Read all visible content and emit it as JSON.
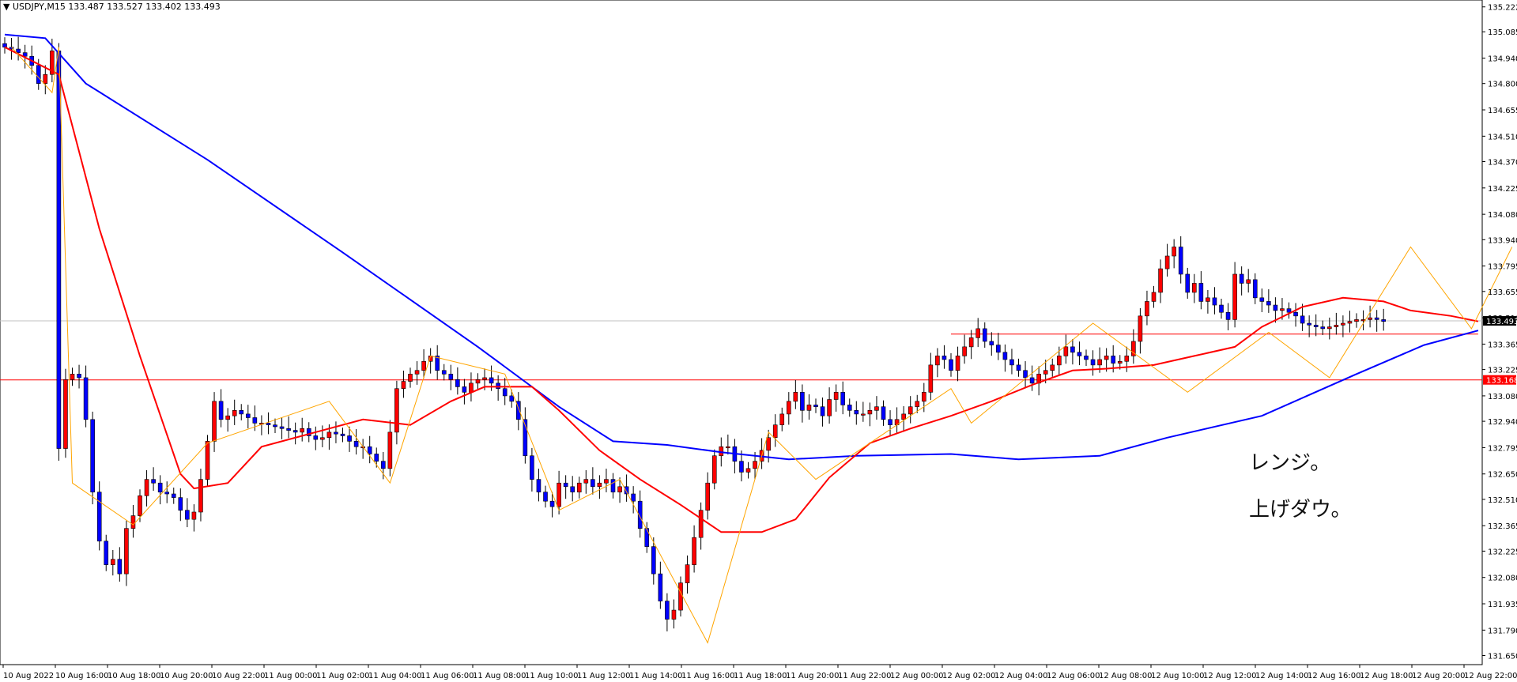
{
  "header": {
    "symbol": "USDJPY,M15",
    "ohlc": "133.487 133.527 133.402 133.493"
  },
  "memo": {
    "line1": "レンジ。",
    "line2": "上げダウ。"
  },
  "colors": {
    "bull_body": "#ff0000",
    "bear_body": "#0000ff",
    "wick": "#000000",
    "ma_fast": "#ff0000",
    "ma_slow": "#0000ff",
    "zigzag": "#ffa500",
    "hline": "#ff0000",
    "bid_line": "#c0c0c0",
    "price_tag_bg": "#000000",
    "level_tag_bg": "#ff0000"
  },
  "chart_data": {
    "type": "candlestick",
    "timeframe": "M15",
    "y_ticks": [
      "135.222",
      "135.085",
      "134.940",
      "134.800",
      "134.655",
      "134.510",
      "134.370",
      "134.225",
      "134.080",
      "133.940",
      "133.795",
      "133.655",
      "133.510",
      "133.365",
      "133.225",
      "133.080",
      "132.940",
      "132.795",
      "132.650",
      "132.510",
      "132.365",
      "132.225",
      "132.080",
      "131.935",
      "131.790",
      "131.650"
    ],
    "ylim": [
      131.6,
      135.26
    ],
    "x_ticks": [
      "10 Aug 2022",
      "10 Aug 16:00",
      "10 Aug 18:00",
      "10 Aug 20:00",
      "10 Aug 22:00",
      "11 Aug 00:00",
      "11 Aug 02:00",
      "11 Aug 04:00",
      "11 Aug 06:00",
      "11 Aug 08:00",
      "11 Aug 10:00",
      "11 Aug 12:00",
      "11 Aug 14:00",
      "11 Aug 16:00",
      "11 Aug 18:00",
      "11 Aug 20:00",
      "11 Aug 22:00",
      "12 Aug 00:00",
      "12 Aug 02:00",
      "12 Aug 04:00",
      "12 Aug 06:00",
      "12 Aug 08:00",
      "12 Aug 10:00",
      "12 Aug 12:00",
      "12 Aug 14:00",
      "12 Aug 16:00",
      "12 Aug 18:00",
      "12 Aug 20:00",
      "12 Aug 22:00"
    ],
    "current_price": "133.493",
    "level_price": "133.168",
    "range_top": 133.42,
    "close_series": [
      135.0,
      134.99,
      134.97,
      134.95,
      134.9,
      134.8,
      134.85,
      134.98,
      132.79,
      133.17,
      133.2,
      133.18,
      132.95,
      132.55,
      132.28,
      132.15,
      132.18,
      132.1,
      132.35,
      132.42,
      132.53,
      132.62,
      132.6,
      132.55,
      132.54,
      132.52,
      132.45,
      132.4,
      132.44,
      132.62,
      132.83,
      133.05,
      132.95,
      132.97,
      133.0,
      132.98,
      132.96,
      132.93,
      132.93,
      132.92,
      132.91,
      132.9,
      132.89,
      132.88,
      132.9,
      132.86,
      132.84,
      132.85,
      132.88,
      132.87,
      132.86,
      132.83,
      132.8,
      132.8,
      132.76,
      132.72,
      132.68,
      132.88,
      133.12,
      133.16,
      133.2,
      133.22,
      133.27,
      133.3,
      133.22,
      133.2,
      133.17,
      133.13,
      133.1,
      133.15,
      133.17,
      133.18,
      133.15,
      133.12,
      133.08,
      133.05,
      132.95,
      132.75,
      132.62,
      132.55,
      132.5,
      132.47,
      132.6,
      132.58,
      132.55,
      132.6,
      132.62,
      132.58,
      132.6,
      132.62,
      132.55,
      132.58,
      132.54,
      132.5,
      132.35,
      132.25,
      132.1,
      131.95,
      131.85,
      131.9,
      132.05,
      132.15,
      132.3,
      132.45,
      132.6,
      132.75,
      132.8,
      132.8,
      132.72,
      132.66,
      132.68,
      132.72,
      132.78,
      132.85,
      132.92,
      132.98,
      133.05,
      133.1,
      133.0,
      133.03,
      133.02,
      132.97,
      133.06,
      133.1,
      133.03,
      133.0,
      132.98,
      132.98,
      133.0,
      133.02,
      132.95,
      132.92,
      132.95,
      132.98,
      133.02,
      133.05,
      133.1,
      133.25,
      133.3,
      133.28,
      133.22,
      133.3,
      133.35,
      133.4,
      133.45,
      133.38,
      133.36,
      133.32,
      133.28,
      133.25,
      133.22,
      133.18,
      133.15,
      133.2,
      133.22,
      133.25,
      133.3,
      133.35,
      133.32,
      133.3,
      133.28,
      133.25,
      133.28,
      133.3,
      133.26,
      133.27,
      133.3,
      133.38,
      133.52,
      133.6,
      133.65,
      133.78,
      133.85,
      133.9,
      133.75,
      133.65,
      133.7,
      133.6,
      133.62,
      133.58,
      133.54,
      133.5,
      133.75,
      133.7,
      133.72,
      133.62,
      133.6,
      133.58,
      133.55,
      133.56,
      133.54,
      133.52,
      133.48,
      133.47,
      133.46,
      133.45,
      133.46,
      133.47,
      133.48,
      133.49,
      133.5,
      133.5,
      133.51,
      133.5,
      133.49
    ],
    "ma_fast": [
      [
        0,
        135.0
      ],
      [
        8,
        134.85
      ],
      [
        14,
        134.0
      ],
      [
        20,
        133.3
      ],
      [
        26,
        132.65
      ],
      [
        28,
        132.57
      ],
      [
        33,
        132.6
      ],
      [
        38,
        132.8
      ],
      [
        45,
        132.87
      ],
      [
        53,
        132.95
      ],
      [
        60,
        132.92
      ],
      [
        66,
        133.05
      ],
      [
        71,
        133.13
      ],
      [
        78,
        133.13
      ],
      [
        82,
        133.0
      ],
      [
        88,
        132.78
      ],
      [
        94,
        132.62
      ],
      [
        100,
        132.48
      ],
      [
        106,
        132.33
      ],
      [
        112,
        132.33
      ],
      [
        117,
        132.4
      ],
      [
        122,
        132.63
      ],
      [
        128,
        132.82
      ],
      [
        134,
        132.9
      ],
      [
        140,
        132.97
      ],
      [
        146,
        133.05
      ],
      [
        152,
        133.14
      ],
      [
        158,
        133.22
      ],
      [
        163,
        133.23
      ],
      [
        170,
        133.25
      ],
      [
        176,
        133.3
      ],
      [
        182,
        133.35
      ],
      [
        186,
        133.46
      ],
      [
        192,
        133.57
      ],
      [
        198,
        133.62
      ],
      [
        204,
        133.6
      ],
      [
        208,
        133.55
      ],
      [
        214,
        133.52
      ],
      [
        218,
        133.49
      ]
    ],
    "ma_slow": [
      [
        0,
        135.07
      ],
      [
        6,
        135.05
      ],
      [
        12,
        134.8
      ],
      [
        30,
        134.38
      ],
      [
        50,
        133.87
      ],
      [
        70,
        133.35
      ],
      [
        82,
        133.02
      ],
      [
        90,
        132.83
      ],
      [
        98,
        132.81
      ],
      [
        106,
        132.77
      ],
      [
        116,
        132.73
      ],
      [
        126,
        132.75
      ],
      [
        140,
        132.76
      ],
      [
        150,
        132.73
      ],
      [
        162,
        132.75
      ],
      [
        172,
        132.85
      ],
      [
        186,
        132.97
      ],
      [
        200,
        133.2
      ],
      [
        210,
        133.36
      ],
      [
        218,
        133.44
      ]
    ],
    "zigzag": [
      [
        1,
        135.0
      ],
      [
        7,
        134.75
      ],
      [
        8,
        135.0
      ],
      [
        10,
        132.6
      ],
      [
        19,
        132.37
      ],
      [
        30,
        132.82
      ],
      [
        48,
        133.05
      ],
      [
        57,
        132.6
      ],
      [
        63,
        133.3
      ],
      [
        74,
        133.2
      ],
      [
        82,
        132.45
      ],
      [
        91,
        132.62
      ],
      [
        104,
        131.72
      ],
      [
        113,
        132.88
      ],
      [
        120,
        132.62
      ],
      [
        140,
        133.12
      ],
      [
        143,
        132.93
      ],
      [
        161,
        133.48
      ],
      [
        175,
        133.1
      ],
      [
        187,
        133.43
      ],
      [
        196,
        133.18
      ],
      [
        208,
        133.9
      ],
      [
        217,
        133.45
      ],
      [
        223,
        133.9
      ]
    ]
  }
}
